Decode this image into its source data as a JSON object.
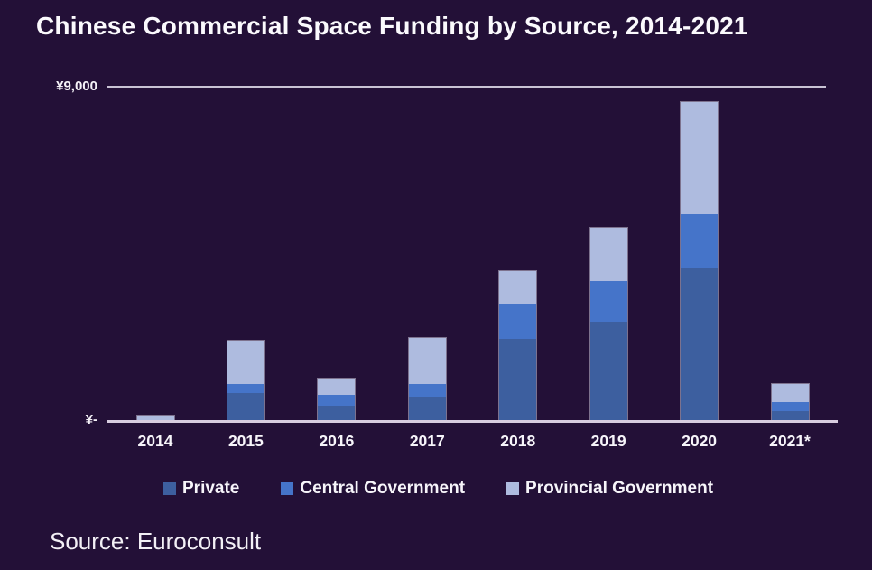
{
  "title": "Chinese Commercial Space Funding by Source, 2014-2021",
  "source": "Source: Euroconsult",
  "y_axis": {
    "top_label": "¥9,000",
    "bottom_label": "¥-"
  },
  "colors": {
    "background": "#231037",
    "private": "#3d5f9f",
    "central_government": "#4574c9",
    "provincial_government": "#aebbdf",
    "axis_line": "#d8cde0",
    "gridline": "#c9c2d4",
    "text": "#fbfafd"
  },
  "chart_data": {
    "type": "bar",
    "stacked": true,
    "title": "Chinese Commercial Space Funding by Source, 2014-2021",
    "xlabel": "",
    "ylabel": "",
    "ylim": [
      0,
      9000
    ],
    "grid": "top-line-only",
    "legend_position": "bottom",
    "categories": [
      "2014",
      "2015",
      "2016",
      "2017",
      "2018",
      "2019",
      "2020",
      "2021*"
    ],
    "series": [
      {
        "name": "Private",
        "color": "#3d5f9f",
        "values": [
          0,
          725,
          365,
          630,
          2185,
          2645,
          4075,
          245
        ]
      },
      {
        "name": "Central Government",
        "color": "#4574c9",
        "values": [
          0,
          245,
          315,
          340,
          920,
          1090,
          1480,
          245
        ]
      },
      {
        "name": "Provincial Government",
        "color": "#aebbdf",
        "values": [
          120,
          1165,
          410,
          1240,
          900,
          1455,
          3010,
          485
        ]
      }
    ],
    "totals": [
      120,
      2135,
      1090,
      2210,
      4005,
      5190,
      8565,
      975
    ]
  }
}
